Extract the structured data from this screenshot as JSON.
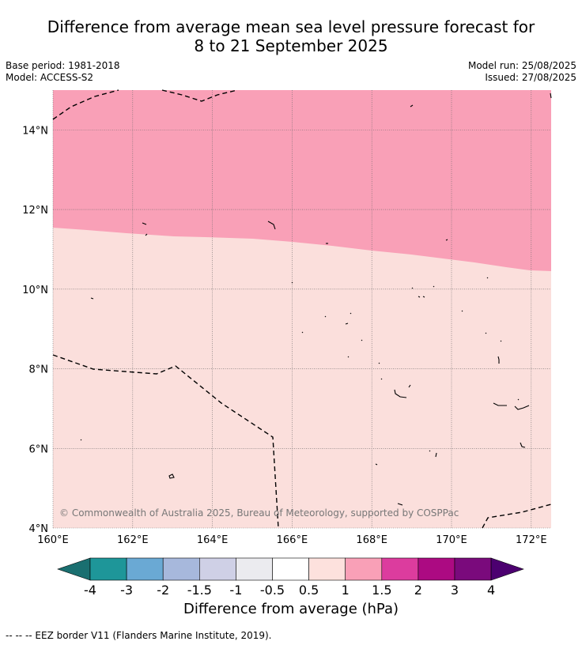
{
  "header": {
    "title_line1": "Difference from average mean sea level pressure forecast for",
    "title_line2": "8 to 21 September 2025",
    "base_period": "Base period: 1981-2018",
    "model": "Model: ACCESS-S2",
    "model_run": "Model run: 25/08/2025",
    "issued": "Issued: 27/08/2025"
  },
  "map": {
    "copyright": "© Commonwealth of Australia 2025, Bureau of Meteorology, supported by COSPPac",
    "lon_ticks": [
      "160°E",
      "162°E",
      "164°E",
      "166°E",
      "168°E",
      "170°E",
      "172°E"
    ],
    "lat_ticks": [
      "14°N",
      "12°N",
      "10°N",
      "8°N",
      "6°N",
      "4°N"
    ],
    "lon_values": [
      160,
      162,
      164,
      166,
      168,
      170,
      172
    ],
    "lat_values": [
      14,
      12,
      10,
      8,
      6,
      4
    ],
    "extent": {
      "lon_min": 160,
      "lon_max": 172.5,
      "lat_min": 4,
      "lat_max": 15
    },
    "regions": [
      {
        "name": "1 to 1.5 hPa",
        "color": "#f9a0b7"
      },
      {
        "name": "0.5 to 1 hPa",
        "color": "#fbdfdc"
      }
    ]
  },
  "colorbar": {
    "title": "Difference from average (hPa)",
    "labels": [
      "-4",
      "-3",
      "-2",
      "-1.5",
      "-1",
      "-0.5",
      "0.5",
      "1",
      "1.5",
      "2",
      "3",
      "4"
    ],
    "colors": [
      "#1a6f70",
      "#1e9699",
      "#6aa9d4",
      "#a7b8dc",
      "#cfd0e6",
      "#ebebef",
      "#ffffff",
      "#fde1dd",
      "#f9a0b7",
      "#dc3c9e",
      "#ac0a82",
      "#7a0a7c",
      "#4c0070"
    ]
  },
  "footer": {
    "legend": "--  --  -- EEZ border V11 (Flanders Marine Institute, 2019)."
  }
}
